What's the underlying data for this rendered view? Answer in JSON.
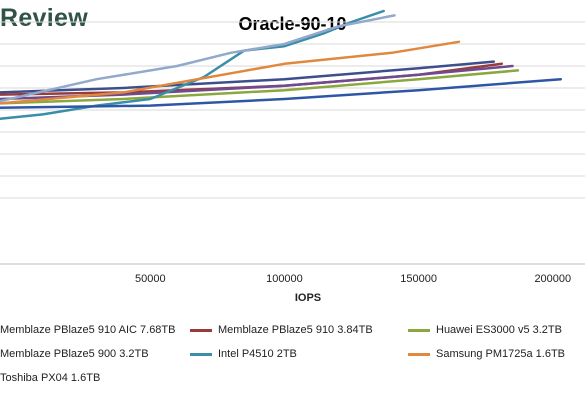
{
  "brand": {
    "text": "Review"
  },
  "chart_data": {
    "type": "line",
    "title": "Oracle-90-10",
    "xlabel": "IOPS",
    "ylabel": "",
    "xlim": [
      -6000,
      212000
    ],
    "ylim": [
      0,
      12
    ],
    "x_ticks": [
      "50000",
      "100000",
      "150000",
      "200000"
    ],
    "x_tick_values": [
      50000,
      100000,
      150000,
      200000
    ],
    "y_grid": [
      3,
      4,
      5,
      6,
      7,
      8,
      9,
      10,
      11
    ],
    "grid": true,
    "legend_position": "bottom",
    "series": [
      {
        "name": "Memblaze PBlaze5 910 AIC 7.68TB",
        "color": "#3c4f8c",
        "x": [
          -6000,
          40000,
          100000,
          150000,
          178000
        ],
        "y": [
          7.8,
          8.0,
          8.4,
          8.9,
          9.2
        ]
      },
      {
        "name": "Memblaze PBlaze5 910 3.84TB",
        "color": "#9a3b3b",
        "x": [
          -6000,
          40000,
          100000,
          150000,
          181000
        ],
        "y": [
          7.7,
          7.8,
          8.1,
          8.6,
          9.1
        ]
      },
      {
        "name": "Huawei ES3000 v5 3.2TB",
        "color": "#8aa83f",
        "x": [
          -6000,
          40000,
          100000,
          150000,
          187000
        ],
        "y": [
          7.3,
          7.5,
          7.9,
          8.4,
          8.8
        ]
      },
      {
        "name": "Memblaze PBlaze5 900 3.2TB",
        "color": "#6f4a8e",
        "x": [
          -6000,
          40000,
          100000,
          150000,
          185000
        ],
        "y": [
          7.5,
          7.7,
          8.1,
          8.6,
          9.0
        ]
      },
      {
        "name": "Intel P4510 2TB",
        "color": "#3a8ea8",
        "x": [
          -6000,
          10000,
          30000,
          50000,
          70000,
          85000,
          100000,
          115000,
          125000,
          137000
        ],
        "y": [
          6.6,
          6.8,
          7.2,
          7.5,
          8.5,
          9.7,
          9.9,
          10.5,
          11.0,
          11.5
        ]
      },
      {
        "name": "Samsung PM1725a 1.6TB",
        "color": "#e0893e",
        "x": [
          -6000,
          40000,
          100000,
          140000,
          165000
        ],
        "y": [
          7.3,
          7.8,
          9.1,
          9.6,
          10.1
        ]
      },
      {
        "name": "Toshiba PX04 1.6TB",
        "color": "#2f56a6",
        "x": [
          -6000,
          50000,
          100000,
          150000,
          203000
        ],
        "y": [
          7.1,
          7.2,
          7.5,
          7.9,
          8.4
        ]
      },
      {
        "name": "",
        "color": "#93a9cc",
        "x": [
          -6000,
          30000,
          60000,
          80000,
          100000,
          120000,
          141000
        ],
        "y": [
          7.4,
          8.4,
          9.0,
          9.6,
          10.0,
          10.8,
          11.3
        ]
      }
    ]
  }
}
